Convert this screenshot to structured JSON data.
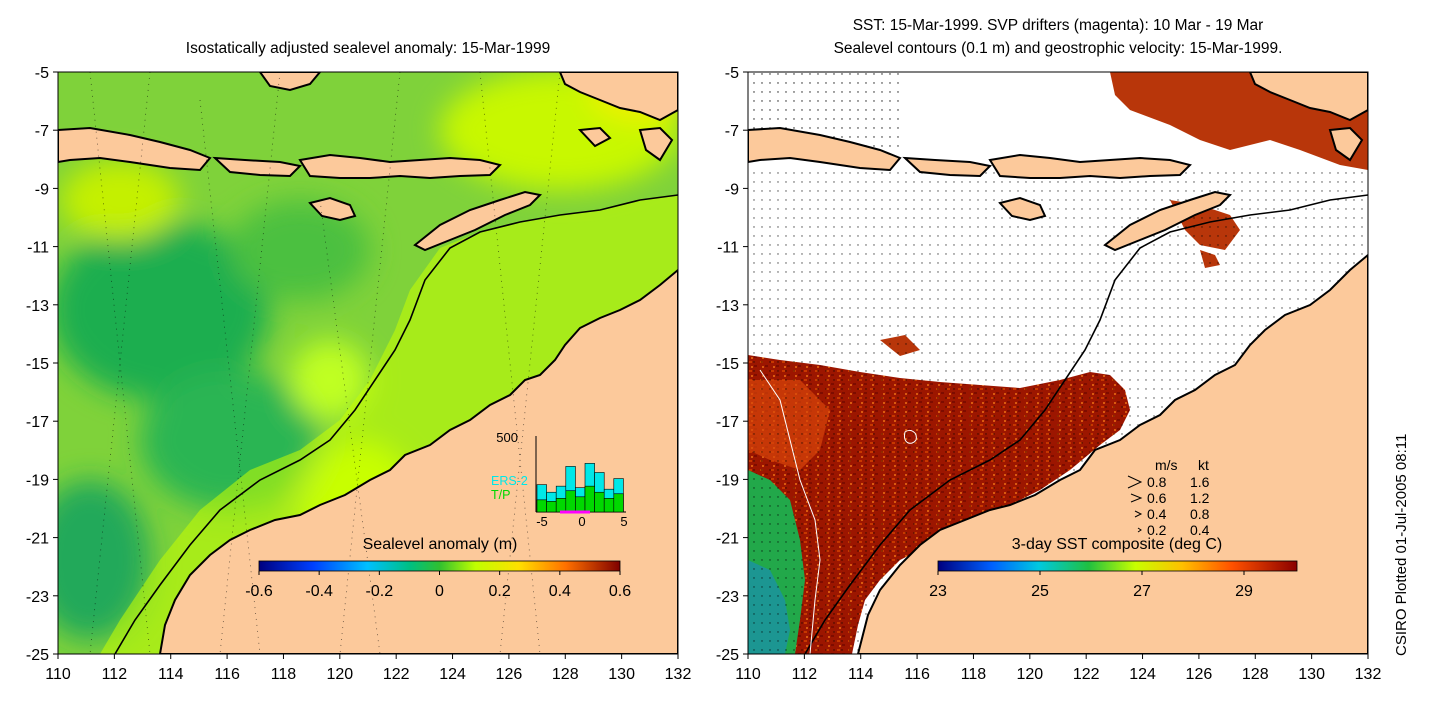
{
  "left_panel": {
    "title": "Isostatically adjusted sealevel anomaly: 15-Mar-1999",
    "colorbar_title": "Sealevel anomaly (m)",
    "colorbar_ticks": [
      "-0.6",
      "-0.4",
      "-0.2",
      "0",
      "0.2",
      "0.4",
      "0.6"
    ],
    "histogram": {
      "ymax_label": "500",
      "xticks": [
        "-5",
        "0",
        "5"
      ],
      "legend": [
        "ERS-2",
        "T/P"
      ],
      "ers2_values": [
        180,
        130,
        170,
        300,
        160,
        320,
        260,
        150,
        220
      ],
      "tp_values": [
        80,
        70,
        90,
        140,
        100,
        170,
        130,
        90,
        120
      ],
      "colors": {
        "ers2": "#00e8e8",
        "tp": "#00d800"
      }
    }
  },
  "right_panel": {
    "title_line1": "SST: 15-Mar-1999. SVP drifters (magenta): 10 Mar - 19 Mar",
    "title_line2": "Sealevel contours (0.1 m) and geostrophic velocity: 15-Mar-1999.",
    "colorbar_title": "3-day SST composite (deg C)",
    "colorbar_ticks": [
      "23",
      "25",
      "27",
      "29"
    ],
    "velocity_legend": {
      "header_ms": "m/s",
      "header_kt": "kt",
      "rows": [
        {
          "ms": "0.8",
          "kt": "1.6"
        },
        {
          "ms": "0.6",
          "kt": "1.2"
        },
        {
          "ms": "0.4",
          "kt": "0.8"
        },
        {
          "ms": "0.2",
          "kt": "0.4"
        }
      ]
    }
  },
  "axes": {
    "x_ticks": [
      "110",
      "112",
      "114",
      "116",
      "118",
      "120",
      "122",
      "124",
      "126",
      "128",
      "130",
      "132"
    ],
    "y_ticks": [
      "-5",
      "-7",
      "-9",
      "-11",
      "-13",
      "-15",
      "-17",
      "-19",
      "-21",
      "-23",
      "-25"
    ]
  },
  "credit": "CSIRO Plotted 01-Jul-2005 08:11",
  "colors": {
    "land": "#fcc99b",
    "coast": "#000000",
    "cloud": "#ffffff"
  }
}
